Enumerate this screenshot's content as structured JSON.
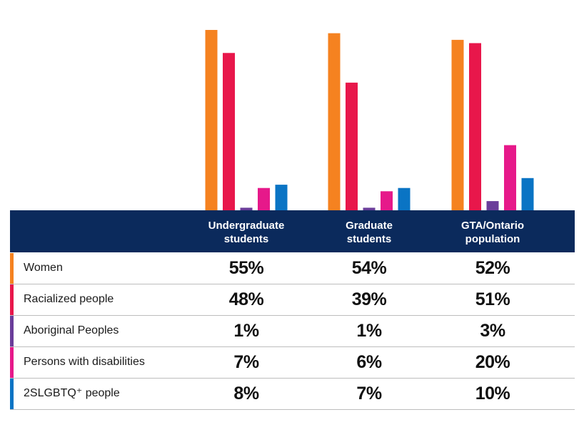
{
  "chart_data": {
    "type": "bar",
    "categories": [
      "Undergraduate students",
      "Graduate students",
      "GTA/Ontario population"
    ],
    "series": [
      {
        "name": "Women",
        "color": "#f58220",
        "values": [
          55,
          54,
          52
        ],
        "labels": [
          "55%",
          "54%",
          "52%"
        ]
      },
      {
        "name": "Racialized people",
        "color": "#e8174b",
        "values": [
          48,
          39,
          51
        ],
        "labels": [
          "48%",
          "39%",
          "51%"
        ]
      },
      {
        "name": "Aboriginal Peoples",
        "color": "#6a3d9a",
        "values": [
          1,
          1,
          3
        ],
        "labels": [
          "1%",
          "1%",
          "3%"
        ]
      },
      {
        "name": "Persons with disabilities",
        "color": "#e6198a",
        "values": [
          7,
          6,
          20
        ],
        "labels": [
          "7%",
          "6%",
          "20%"
        ]
      },
      {
        "name": "2SLGBTQ⁺ people",
        "color": "#0a74c4",
        "values": [
          8,
          7,
          10
        ],
        "labels": [
          "8%",
          "7%",
          "10%"
        ]
      }
    ],
    "column_headers": [
      [
        "Undergraduate",
        "students"
      ],
      [
        "Graduate",
        "students"
      ],
      [
        "GTA/Ontario",
        "population"
      ]
    ],
    "ylim": [
      0,
      55
    ],
    "title": "",
    "xlabel": "",
    "ylabel": "",
    "grid": false,
    "legend": "table-rows"
  },
  "colors": {
    "header_bg": "#0b2a5c",
    "header_text": "#ffffff",
    "row_divider": "#bdbdbd"
  }
}
